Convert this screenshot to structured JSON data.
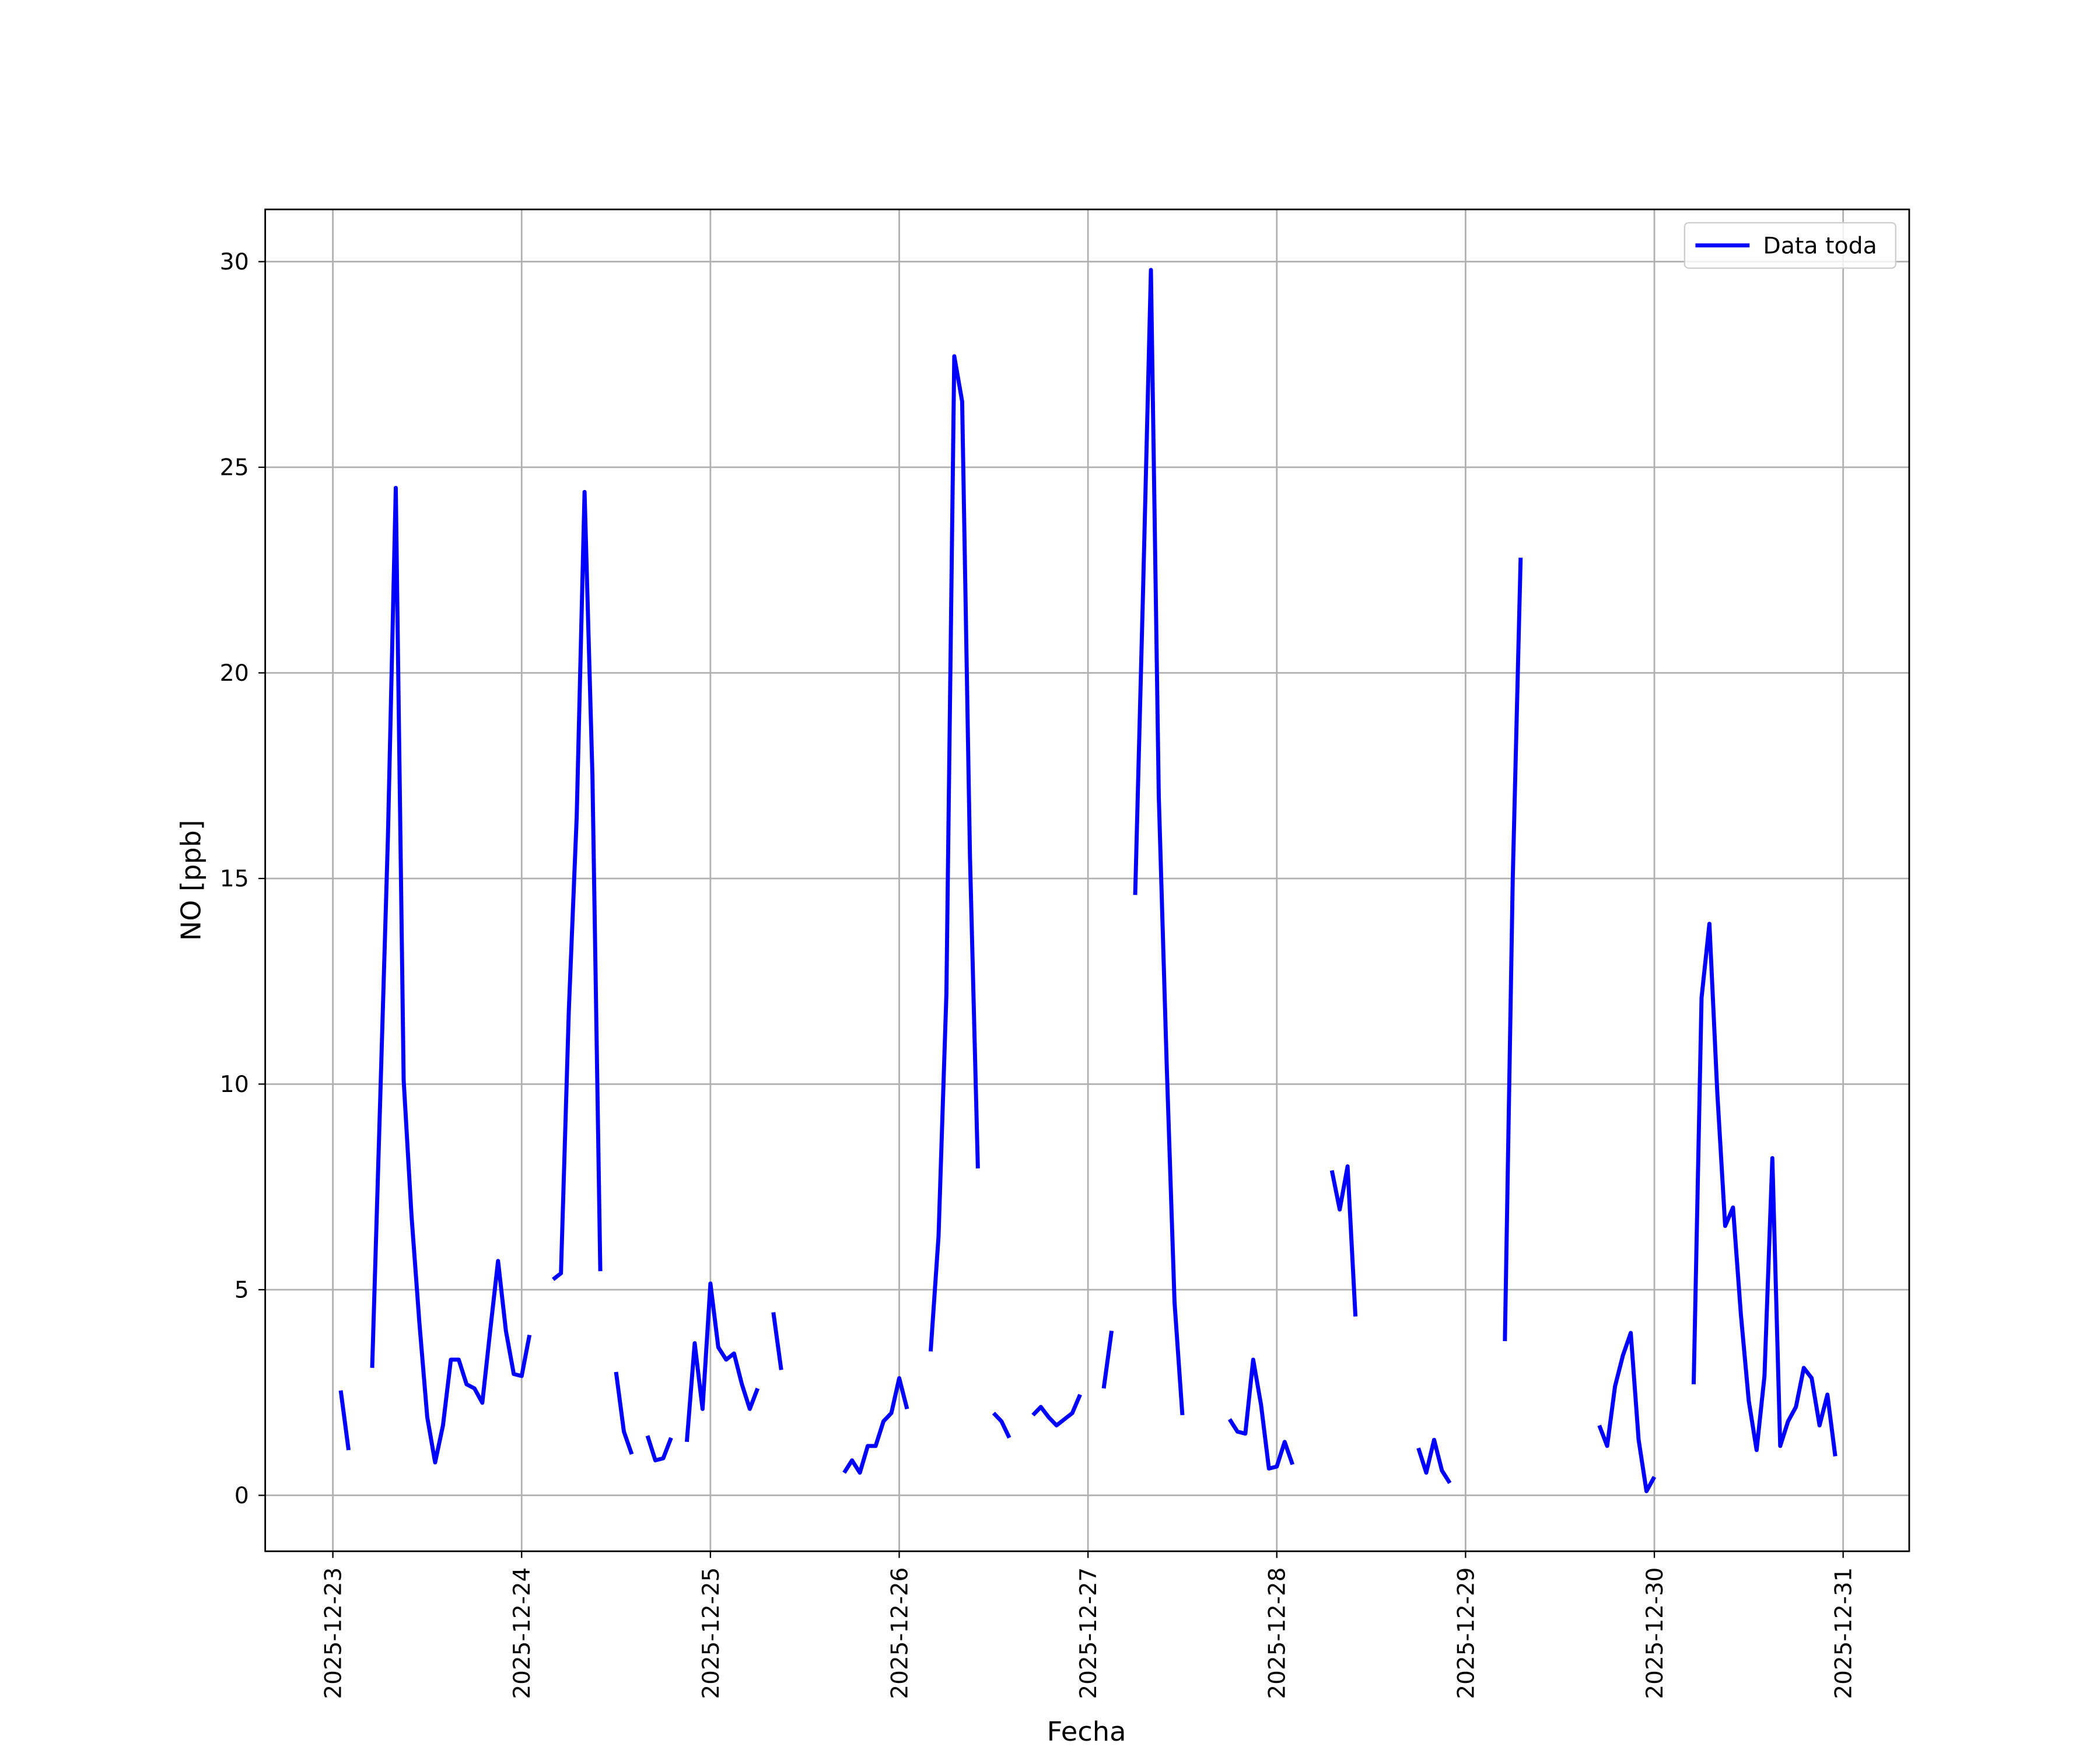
{
  "chart_data": {
    "type": "line",
    "xlabel": "Fecha",
    "ylabel": "NO [ppb]",
    "xlim": [
      "2025-12-22 15:24",
      "2025-12-31 08:24"
    ],
    "xticks": [
      "2025-12-23",
      "2025-12-24",
      "2025-12-25",
      "2025-12-26",
      "2025-12-27",
      "2025-12-28",
      "2025-12-29",
      "2025-12-30",
      "2025-12-31"
    ],
    "ylim": [
      -1.36,
      31.27
    ],
    "yticks": [
      0,
      5,
      10,
      15,
      20,
      25,
      30
    ],
    "grid": true,
    "legend": "upper right",
    "x": [
      "2025-12-23 01:00",
      "2025-12-23 02:00",
      null,
      "2025-12-23 05:00",
      "2025-12-23 06:00",
      "2025-12-23 07:00",
      "2025-12-23 08:00",
      "2025-12-23 09:00",
      "2025-12-23 10:00",
      "2025-12-23 11:00",
      "2025-12-23 12:00",
      "2025-12-23 13:00",
      "2025-12-23 14:00",
      "2025-12-23 15:00",
      "2025-12-23 16:00",
      "2025-12-23 17:00",
      "2025-12-23 18:00",
      "2025-12-23 19:00",
      "2025-12-23 20:00",
      "2025-12-23 21:00",
      "2025-12-23 22:00",
      "2025-12-23 23:00",
      "2025-12-24 00:00",
      "2025-12-24 01:00",
      null,
      "2025-12-24 04:00",
      "2025-12-24 05:00",
      "2025-12-24 06:00",
      "2025-12-24 07:00",
      "2025-12-24 08:00",
      "2025-12-24 09:00",
      "2025-12-24 10:00",
      null,
      "2025-12-24 12:00",
      "2025-12-24 13:00",
      "2025-12-24 14:00",
      null,
      "2025-12-24 16:00",
      "2025-12-24 17:00",
      "2025-12-24 18:00",
      "2025-12-24 19:00",
      null,
      "2025-12-24 21:00",
      "2025-12-24 22:00",
      "2025-12-24 23:00",
      "2025-12-25 00:00",
      "2025-12-25 01:00",
      "2025-12-25 02:00",
      "2025-12-25 03:00",
      "2025-12-25 04:00",
      "2025-12-25 05:00",
      "2025-12-25 06:00",
      null,
      "2025-12-25 08:00",
      "2025-12-25 09:00",
      null,
      "2025-12-25 17:00",
      "2025-12-25 18:00",
      "2025-12-25 19:00",
      "2025-12-25 20:00",
      "2025-12-25 21:00",
      "2025-12-25 22:00",
      "2025-12-25 23:00",
      "2025-12-26 00:00",
      "2025-12-26 01:00",
      null,
      "2025-12-26 04:00",
      "2025-12-26 05:00",
      "2025-12-26 06:00",
      "2025-12-26 07:00",
      "2025-12-26 08:00",
      "2025-12-26 09:00",
      "2025-12-26 10:00",
      null,
      "2025-12-26 12:00",
      "2025-12-26 13:00",
      "2025-12-26 14:00",
      null,
      "2025-12-26 17:00",
      "2025-12-26 18:00",
      "2025-12-26 19:00",
      "2025-12-26 20:00",
      "2025-12-26 21:00",
      "2025-12-26 22:00",
      "2025-12-26 23:00",
      null,
      "2025-12-27 02:00",
      "2025-12-27 03:00",
      null,
      "2025-12-27 06:00",
      "2025-12-27 07:00",
      "2025-12-27 08:00",
      "2025-12-27 09:00",
      "2025-12-27 10:00",
      "2025-12-27 11:00",
      "2025-12-27 12:00",
      null,
      "2025-12-27 18:00",
      "2025-12-27 19:00",
      "2025-12-27 20:00",
      "2025-12-27 21:00",
      "2025-12-27 22:00",
      "2025-12-27 23:00",
      "2025-12-28 00:00",
      "2025-12-28 01:00",
      "2025-12-28 02:00",
      null,
      "2025-12-28 07:00",
      "2025-12-28 08:00",
      "2025-12-28 09:00",
      "2025-12-28 10:00",
      null,
      "2025-12-28 18:00",
      "2025-12-28 19:00",
      "2025-12-28 20:00",
      "2025-12-28 21:00",
      "2025-12-28 22:00",
      null,
      "2025-12-29 05:00",
      "2025-12-29 06:00",
      "2025-12-29 07:00",
      null,
      "2025-12-29 17:00",
      "2025-12-29 18:00",
      "2025-12-29 19:00",
      "2025-12-29 20:00",
      "2025-12-29 21:00",
      "2025-12-29 22:00",
      "2025-12-29 23:00",
      "2025-12-30 00:00",
      null,
      "2025-12-30 05:00",
      "2025-12-30 06:00",
      "2025-12-30 07:00",
      "2025-12-30 08:00",
      "2025-12-30 09:00",
      "2025-12-30 10:00",
      "2025-12-30 11:00",
      "2025-12-30 12:00",
      "2025-12-30 13:00",
      "2025-12-30 14:00",
      "2025-12-30 15:00",
      "2025-12-30 16:00",
      "2025-12-30 17:00",
      "2025-12-30 18:00",
      "2025-12-30 19:00",
      "2025-12-30 20:00",
      "2025-12-30 21:00",
      "2025-12-30 22:00",
      "2025-12-30 23:00"
    ],
    "series": [
      {
        "name": "Data toda",
        "color": "#0000ff",
        "values": [
          2.55,
          1.1,
          null,
          3.1,
          9.5,
          16,
          24.5,
          10.1,
          6.8,
          4.2,
          1.9,
          0.8,
          1.7,
          3.3,
          3.3,
          2.7,
          2.6,
          2.25,
          4,
          5.7,
          4,
          2.95,
          2.9,
          3.9,
          null,
          5.25,
          5.4,
          11.8,
          16.5,
          24.4,
          17.5,
          5.45,
          null,
          3.0,
          1.55,
          1.0,
          null,
          1.45,
          0.85,
          0.9,
          1.4,
          null,
          1.3,
          3.7,
          2.1,
          5.15,
          3.6,
          3.3,
          3.45,
          2.7,
          2.1,
          2.6,
          null,
          4.45,
          3.05,
          null,
          0.55,
          0.85,
          0.55,
          1.2,
          1.2,
          1.8,
          2.0,
          2.85,
          2.1,
          null,
          3.5,
          6.3,
          12.2,
          27.7,
          26.6,
          15.5,
          7.95,
          null,
          2.0,
          1.8,
          1.4,
          null,
          1.95,
          2.15,
          1.9,
          1.7,
          1.85,
          2.0,
          2.45,
          null,
          2.6,
          4.0,
          null,
          14.6,
          22,
          29.8,
          17,
          10.5,
          4.7,
          1.95,
          null,
          1.85,
          1.55,
          1.5,
          3.3,
          2.2,
          0.65,
          0.7,
          1.3,
          0.75,
          null,
          7.9,
          6.95,
          8.0,
          4.35,
          null,
          1.15,
          0.55,
          1.35,
          0.6,
          0.3,
          null,
          3.75,
          15,
          22.8,
          null,
          1.7,
          1.2,
          2.65,
          3.4,
          3.95,
          1.35,
          0.1,
          0.45,
          null,
          2.7,
          12.1,
          13.9,
          9.8,
          6.55,
          7.0,
          4.4,
          2.3,
          1.1,
          2.9,
          8.2,
          1.2,
          1.8,
          2.15,
          3.1,
          2.85,
          1.7,
          2.45,
          0.95
        ]
      }
    ]
  }
}
